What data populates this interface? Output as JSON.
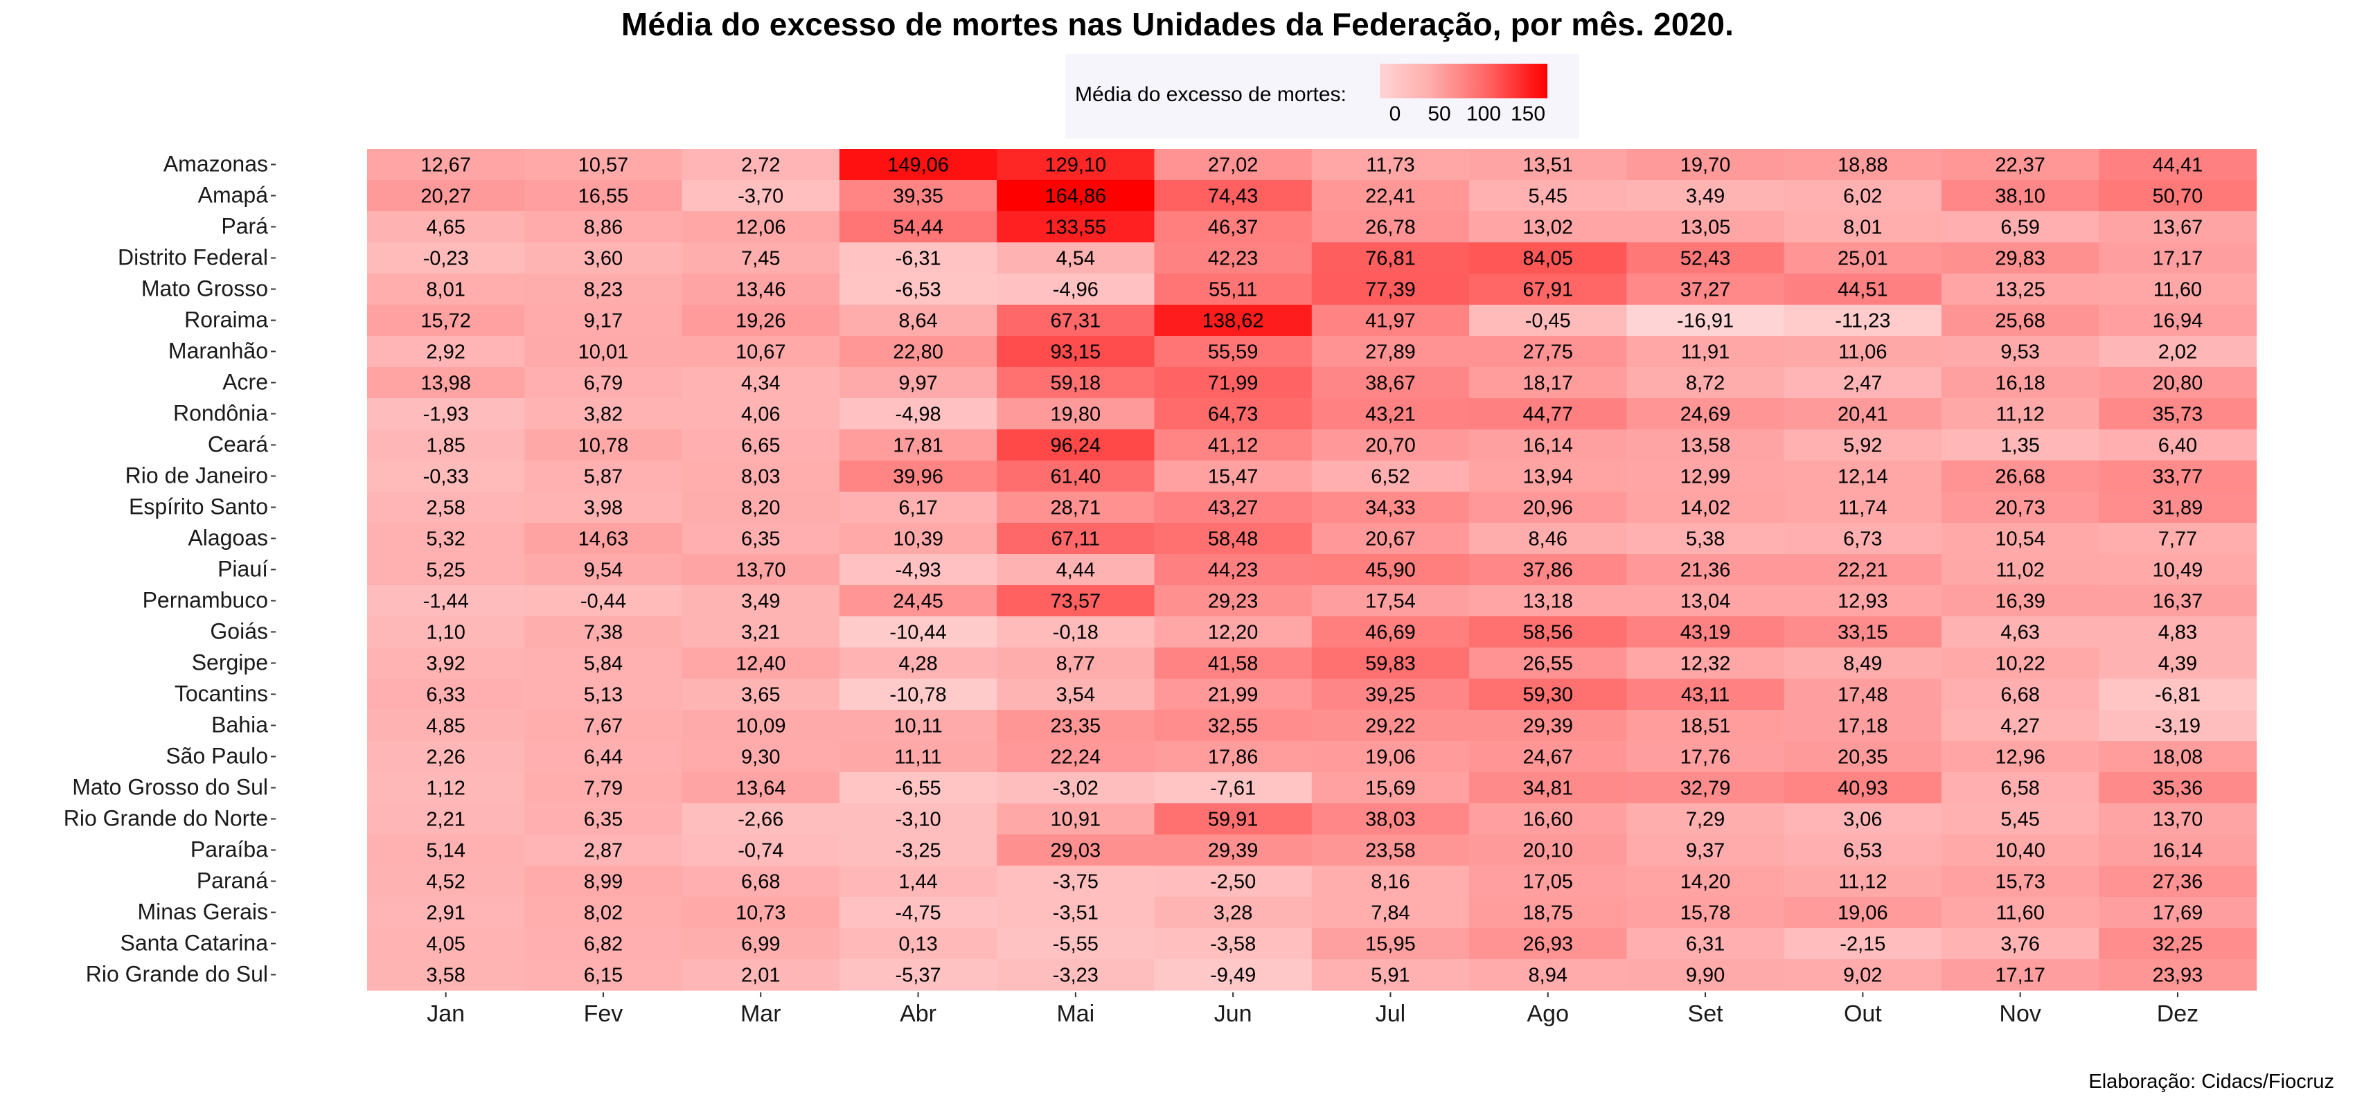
{
  "chart_data": {
    "type": "heatmap",
    "title": "Média do excesso de mortes nas Unidades da Federação, por mês. 2020.",
    "caption": "Elaboração: Cidacs/Fiocruz",
    "legend": {
      "title": "Média do excesso de mortes:",
      "ticks": [
        "0",
        "50",
        "100",
        "150"
      ],
      "placement": "top"
    },
    "colors": {
      "low": "#ffd4d4",
      "mid": "#ff9a9a",
      "high": "#ff0000"
    },
    "columns": [
      "Jan",
      "Fev",
      "Mar",
      "Abr",
      "Mai",
      "Jun",
      "Jul",
      "Ago",
      "Set",
      "Out",
      "Nov",
      "Dez"
    ],
    "rows": [
      "Amazonas",
      "Amapá",
      "Pará",
      "Distrito Federal",
      "Mato Grosso",
      "Roraima",
      "Maranhão",
      "Acre",
      "Rondônia",
      "Ceará",
      "Rio de Janeiro",
      "Espírito Santo",
      "Alagoas",
      "Piauí",
      "Pernambuco",
      "Goiás",
      "Sergipe",
      "Tocantins",
      "Bahia",
      "São Paulo",
      "Mato Grosso do Sul",
      "Rio Grande do Norte",
      "Paraíba",
      "Paraná",
      "Minas Gerais",
      "Santa Catarina",
      "Rio Grande do Sul"
    ],
    "values": [
      [
        "12,67",
        "10,57",
        "2,72",
        "149,06",
        "129,10",
        "27,02",
        "11,73",
        "13,51",
        "19,70",
        "18,88",
        "22,37",
        "44,41"
      ],
      [
        "20,27",
        "16,55",
        "-3,70",
        "39,35",
        "164,86",
        "74,43",
        "22,41",
        "5,45",
        "3,49",
        "6,02",
        "38,10",
        "50,70"
      ],
      [
        "4,65",
        "8,86",
        "12,06",
        "54,44",
        "133,55",
        "46,37",
        "26,78",
        "13,02",
        "13,05",
        "8,01",
        "6,59",
        "13,67"
      ],
      [
        "-0,23",
        "3,60",
        "7,45",
        "-6,31",
        "4,54",
        "42,23",
        "76,81",
        "84,05",
        "52,43",
        "25,01",
        "29,83",
        "17,17"
      ],
      [
        "8,01",
        "8,23",
        "13,46",
        "-6,53",
        "-4,96",
        "55,11",
        "77,39",
        "67,91",
        "37,27",
        "44,51",
        "13,25",
        "11,60"
      ],
      [
        "15,72",
        "9,17",
        "19,26",
        "8,64",
        "67,31",
        "138,62",
        "41,97",
        "-0,45",
        "-16,91",
        "-11,23",
        "25,68",
        "16,94"
      ],
      [
        "2,92",
        "10,01",
        "10,67",
        "22,80",
        "93,15",
        "55,59",
        "27,89",
        "27,75",
        "11,91",
        "11,06",
        "9,53",
        "2,02"
      ],
      [
        "13,98",
        "6,79",
        "4,34",
        "9,97",
        "59,18",
        "71,99",
        "38,67",
        "18,17",
        "8,72",
        "2,47",
        "16,18",
        "20,80"
      ],
      [
        "-1,93",
        "3,82",
        "4,06",
        "-4,98",
        "19,80",
        "64,73",
        "43,21",
        "44,77",
        "24,69",
        "20,41",
        "11,12",
        "35,73"
      ],
      [
        "1,85",
        "10,78",
        "6,65",
        "17,81",
        "96,24",
        "41,12",
        "20,70",
        "16,14",
        "13,58",
        "5,92",
        "1,35",
        "6,40"
      ],
      [
        "-0,33",
        "5,87",
        "8,03",
        "39,96",
        "61,40",
        "15,47",
        "6,52",
        "13,94",
        "12,99",
        "12,14",
        "26,68",
        "33,77"
      ],
      [
        "2,58",
        "3,98",
        "8,20",
        "6,17",
        "28,71",
        "43,27",
        "34,33",
        "20,96",
        "14,02",
        "11,74",
        "20,73",
        "31,89"
      ],
      [
        "5,32",
        "14,63",
        "6,35",
        "10,39",
        "67,11",
        "58,48",
        "20,67",
        "8,46",
        "5,38",
        "6,73",
        "10,54",
        "7,77"
      ],
      [
        "5,25",
        "9,54",
        "13,70",
        "-4,93",
        "4,44",
        "44,23",
        "45,90",
        "37,86",
        "21,36",
        "22,21",
        "11,02",
        "10,49"
      ],
      [
        "-1,44",
        "-0,44",
        "3,49",
        "24,45",
        "73,57",
        "29,23",
        "17,54",
        "13,18",
        "13,04",
        "12,93",
        "16,39",
        "16,37"
      ],
      [
        "1,10",
        "7,38",
        "3,21",
        "-10,44",
        "-0,18",
        "12,20",
        "46,69",
        "58,56",
        "43,19",
        "33,15",
        "4,63",
        "4,83"
      ],
      [
        "3,92",
        "5,84",
        "12,40",
        "4,28",
        "8,77",
        "41,58",
        "59,83",
        "26,55",
        "12,32",
        "8,49",
        "10,22",
        "4,39"
      ],
      [
        "6,33",
        "5,13",
        "3,65",
        "-10,78",
        "3,54",
        "21,99",
        "39,25",
        "59,30",
        "43,11",
        "17,48",
        "6,68",
        "-6,81"
      ],
      [
        "4,85",
        "7,67",
        "10,09",
        "10,11",
        "23,35",
        "32,55",
        "29,22",
        "29,39",
        "18,51",
        "17,18",
        "4,27",
        "-3,19"
      ],
      [
        "2,26",
        "6,44",
        "9,30",
        "11,11",
        "22,24",
        "17,86",
        "19,06",
        "24,67",
        "17,76",
        "20,35",
        "12,96",
        "18,08"
      ],
      [
        "1,12",
        "7,79",
        "13,64",
        "-6,55",
        "-3,02",
        "-7,61",
        "15,69",
        "34,81",
        "32,79",
        "40,93",
        "6,58",
        "35,36"
      ],
      [
        "2,21",
        "6,35",
        "-2,66",
        "-3,10",
        "10,91",
        "59,91",
        "38,03",
        "16,60",
        "7,29",
        "3,06",
        "5,45",
        "13,70"
      ],
      [
        "5,14",
        "2,87",
        "-0,74",
        "-3,25",
        "29,03",
        "29,39",
        "23,58",
        "20,10",
        "9,37",
        "6,53",
        "10,40",
        "16,14"
      ],
      [
        "4,52",
        "8,99",
        "6,68",
        "1,44",
        "-3,75",
        "-2,50",
        "8,16",
        "17,05",
        "14,20",
        "11,12",
        "15,73",
        "27,36"
      ],
      [
        "2,91",
        "8,02",
        "10,73",
        "-4,75",
        "-3,51",
        "3,28",
        "7,84",
        "18,75",
        "15,78",
        "19,06",
        "11,60",
        "17,69"
      ],
      [
        "4,05",
        "6,82",
        "6,99",
        "0,13",
        "-5,55",
        "-3,58",
        "15,95",
        "26,93",
        "6,31",
        "-2,15",
        "3,76",
        "32,25"
      ],
      [
        "3,58",
        "6,15",
        "2,01",
        "-5,37",
        "-3,23",
        "-9,49",
        "5,91",
        "8,94",
        "9,90",
        "9,02",
        "17,17",
        "23,93"
      ]
    ]
  }
}
